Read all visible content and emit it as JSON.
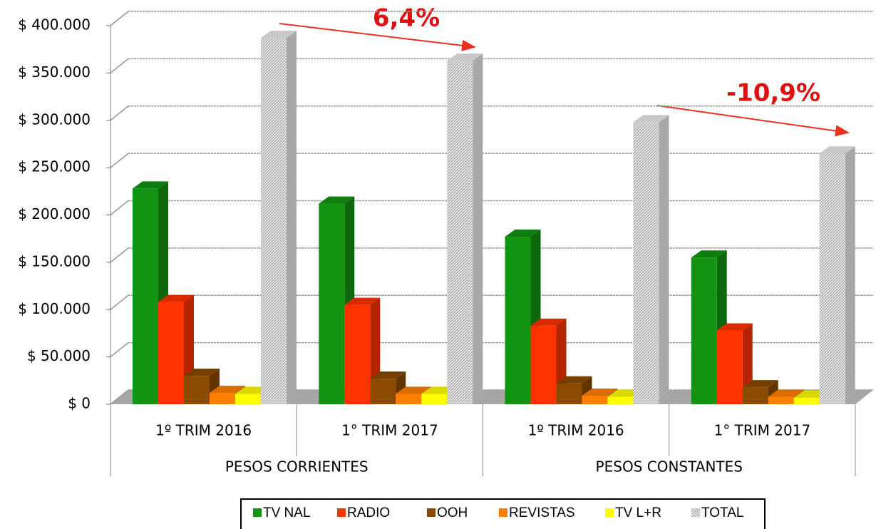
{
  "chart_data": {
    "type": "bar",
    "categories": [
      "1º TRIM 2016",
      "1° TRIM 2017",
      "1º TRIM 2016",
      "1° TRIM 2017"
    ],
    "groups": [
      "PESOS CORRIENTES",
      "PESOS CONSTANTES"
    ],
    "series": [
      {
        "name": "TV NAL",
        "color": "#129412",
        "values": [
          228000,
          212000,
          177000,
          155000
        ]
      },
      {
        "name": "RADIO",
        "color": "#ff3300",
        "values": [
          108000,
          105000,
          83000,
          78000
        ]
      },
      {
        "name": "OOH",
        "color": "#8b4a00",
        "values": [
          30000,
          27000,
          22000,
          18000
        ]
      },
      {
        "name": "REVISTAS",
        "color": "#ff8000",
        "values": [
          12000,
          11000,
          9000,
          8000
        ]
      },
      {
        "name": "TV L+R",
        "color": "#ffff00",
        "values": [
          11000,
          11000,
          8000,
          7000
        ]
      },
      {
        "name": "TOTAL",
        "color": "#d9d9d9",
        "values": [
          387000,
          363000,
          298000,
          265000
        ]
      }
    ],
    "ylim": [
      0,
      400000
    ],
    "yticks": [
      {
        "value": 0,
        "label": "$ 0"
      },
      {
        "value": 50000,
        "label": "$ 50.000"
      },
      {
        "value": 100000,
        "label": "$ 100.000"
      },
      {
        "value": 150000,
        "label": "$ 150.000"
      },
      {
        "value": 200000,
        "label": "$ 200.000"
      },
      {
        "value": 250000,
        "label": "$ 250.000"
      },
      {
        "value": 300000,
        "label": "$ 300.000"
      },
      {
        "value": 350000,
        "label": "$ 350.000"
      },
      {
        "value": 400000,
        "label": "$ 400.000"
      }
    ],
    "grid": true,
    "annotations": [
      "6,4%",
      "-10,9%"
    ]
  }
}
